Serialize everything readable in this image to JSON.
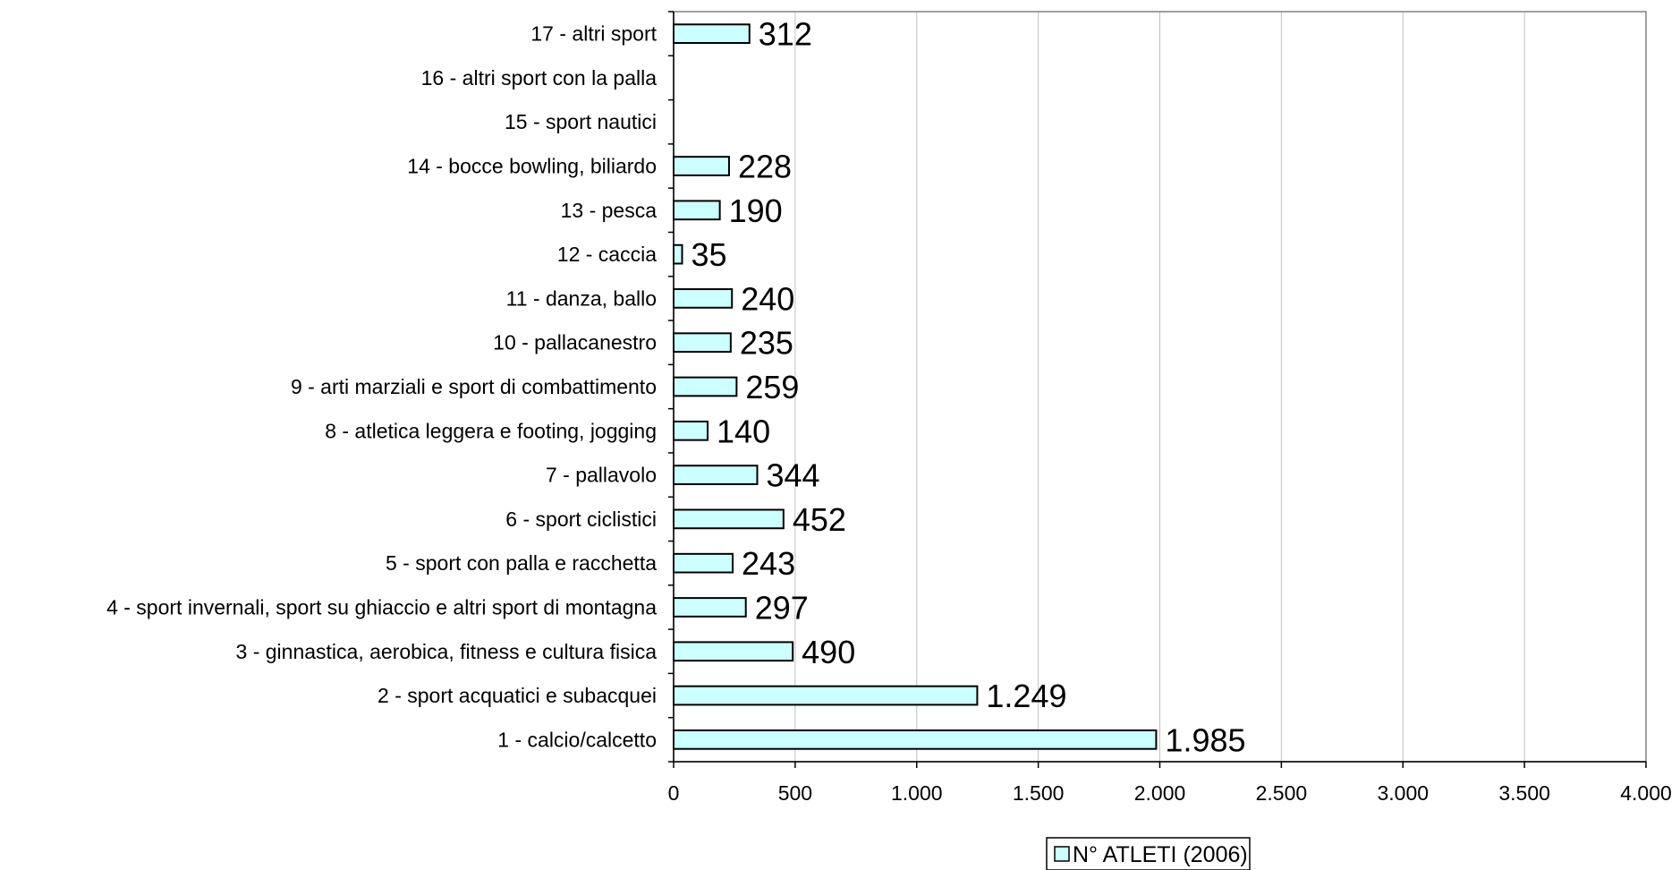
{
  "chart_data": {
    "type": "bar",
    "orientation": "horizontal",
    "categories": [
      "1 - calcio/calcetto",
      "2 - sport acquatici e subacquei",
      "3 - ginnastica, aerobica, fitness e cultura fisica",
      "4 - sport invernali, sport su ghiaccio e altri sport di montagna",
      "5 - sport con palla e racchetta",
      "6 - sport ciclistici",
      "7 - pallavolo",
      "8 - atletica leggera e footing, jogging",
      "9 - arti marziali e sport di combattimento",
      "10 - pallacanestro",
      "11 - danza, ballo",
      "12 - caccia",
      "13 - pesca",
      "14 - bocce bowling, biliardo",
      "15 - sport nautici",
      "16 - altri sport con la palla",
      "17 - altri sport"
    ],
    "series": [
      {
        "name": "N° ATLETI (2006)",
        "values": [
          1985,
          1249,
          490,
          297,
          243,
          452,
          344,
          140,
          259,
          235,
          240,
          35,
          190,
          228,
          null,
          null,
          312
        ],
        "labels": [
          "1.985",
          "1.249",
          "490",
          "297",
          "243",
          "452",
          "344",
          "140",
          "259",
          "235",
          "240",
          "35",
          "190",
          "228",
          "",
          "",
          "312"
        ]
      }
    ],
    "xlim": [
      0,
      4000
    ],
    "x_ticks": [
      0,
      500,
      1000,
      1500,
      2000,
      2500,
      3000,
      3500,
      4000
    ],
    "x_tick_labels": [
      "0",
      "500",
      "1.000",
      "1.500",
      "2.000",
      "2.500",
      "3.000",
      "3.500",
      "4.000"
    ],
    "grid": "vertical",
    "legend_position": "bottom",
    "title": "",
    "xlabel": "",
    "ylabel": ""
  },
  "colors": {
    "bar_fill": "#ccffff",
    "bar_stroke": "#000000",
    "grid": "#c0c0c0",
    "axis": "#808080"
  }
}
